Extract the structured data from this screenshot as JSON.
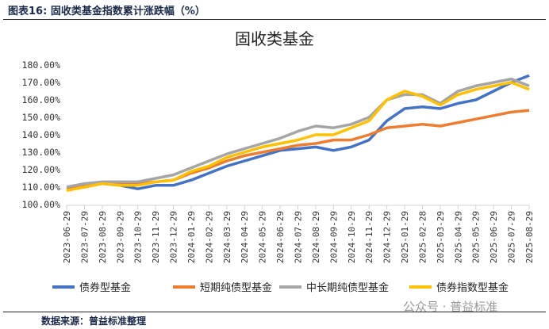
{
  "figure_label": "图表16:   固收类基金指数累计涨跌幅（%）",
  "source": "数据来源：普益标准整理",
  "watermark": "公众号 · 普益标准",
  "chart_data": {
    "type": "line",
    "title": "固收类基金",
    "xlabel": "",
    "ylabel": "",
    "ylim": [
      100,
      180
    ],
    "yticks": [
      "100.00%",
      "110.00%",
      "120.00%",
      "130.00%",
      "140.00%",
      "150.00%",
      "160.00%",
      "170.00%",
      "180.00%"
    ],
    "grid": false,
    "legend": "bottom",
    "x": [
      "2023-06-29",
      "2023-07-29",
      "2023-08-29",
      "2023-09-29",
      "2023-10-29",
      "2023-11-29",
      "2023-12-29",
      "2024-01-29",
      "2024-02-29",
      "2024-03-29",
      "2024-04-29",
      "2024-05-29",
      "2024-06-29",
      "2024-07-29",
      "2024-08-29",
      "2024-09-29",
      "2024-10-29",
      "2024-11-29",
      "2024-12-29",
      "2025-01-29",
      "2025-02-28",
      "2025-03-29",
      "2025-04-29",
      "2025-05-29",
      "2025-06-29",
      "2025-07-29",
      "2025-08-29"
    ],
    "series": [
      {
        "name": "债券型基金",
        "color": "#4472C4",
        "values": [
          109,
          110,
          112,
          111,
          109,
          111,
          111,
          114,
          118,
          122,
          125,
          128,
          131,
          132,
          133,
          131,
          133,
          137,
          148,
          155,
          156,
          155,
          158,
          160,
          165,
          170,
          174
        ]
      },
      {
        "name": "短期纯债型基金",
        "color": "#ED7D31",
        "values": [
          109,
          111,
          112,
          112,
          112,
          113,
          114,
          118,
          121,
          125,
          128,
          130,
          132,
          134,
          135,
          137,
          137,
          140,
          144,
          145,
          146,
          145,
          147,
          149,
          151,
          153,
          154
        ]
      },
      {
        "name": "中长期纯债型基金",
        "color": "#A5A5A5",
        "values": [
          110,
          112,
          113,
          113,
          113,
          115,
          117,
          121,
          125,
          129,
          132,
          135,
          138,
          142,
          145,
          144,
          146,
          150,
          160,
          163,
          163,
          158,
          165,
          168,
          170,
          172,
          168
        ]
      },
      {
        "name": "债券指数型基金",
        "color": "#FFC000",
        "values": [
          108,
          110,
          112,
          111,
          111,
          113,
          114,
          119,
          122,
          127,
          130,
          133,
          135,
          137,
          140,
          140,
          144,
          148,
          160,
          165,
          162,
          157,
          163,
          166,
          168,
          170,
          166
        ]
      }
    ]
  }
}
